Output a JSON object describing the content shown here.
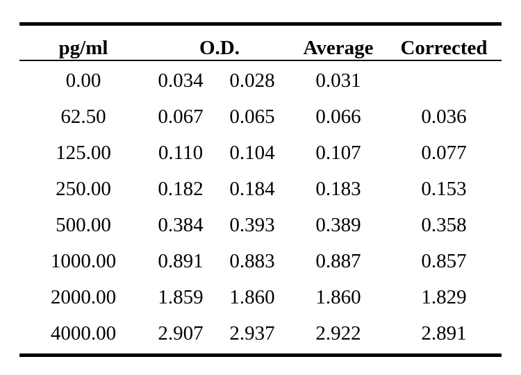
{
  "table": {
    "headers": {
      "conc": "pg/ml",
      "od": "O.D.",
      "average": "Average",
      "corrected": "Corrected"
    },
    "rows": [
      {
        "conc": "0.00",
        "od1": "0.034",
        "od2": "0.028",
        "average": "0.031",
        "corrected": ""
      },
      {
        "conc": "62.50",
        "od1": "0.067",
        "od2": "0.065",
        "average": "0.066",
        "corrected": "0.036"
      },
      {
        "conc": "125.00",
        "od1": "0.110",
        "od2": "0.104",
        "average": "0.107",
        "corrected": "0.077"
      },
      {
        "conc": "250.00",
        "od1": "0.182",
        "od2": "0.184",
        "average": "0.183",
        "corrected": "0.153"
      },
      {
        "conc": "500.00",
        "od1": "0.384",
        "od2": "0.393",
        "average": "0.389",
        "corrected": "0.358"
      },
      {
        "conc": "1000.00",
        "od1": "0.891",
        "od2": "0.883",
        "average": "0.887",
        "corrected": "0.857"
      },
      {
        "conc": "2000.00",
        "od1": "1.859",
        "od2": "1.860",
        "average": "1.860",
        "corrected": "1.829"
      },
      {
        "conc": "4000.00",
        "od1": "2.907",
        "od2": "2.937",
        "average": "2.922",
        "corrected": "2.891"
      }
    ]
  }
}
